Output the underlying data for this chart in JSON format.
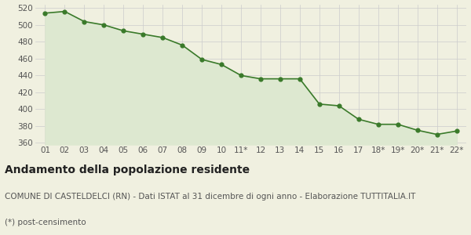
{
  "x_labels": [
    "01",
    "02",
    "03",
    "04",
    "05",
    "06",
    "07",
    "08",
    "09",
    "10",
    "11*",
    "12",
    "13",
    "14",
    "15",
    "16",
    "17",
    "18*",
    "19*",
    "20*",
    "21*",
    "22*"
  ],
  "y_values": [
    514,
    516,
    504,
    500,
    493,
    489,
    485,
    476,
    459,
    453,
    440,
    436,
    436,
    436,
    406,
    404,
    388,
    382,
    382,
    375,
    370,
    374
  ],
  "line_color": "#3a7a2a",
  "fill_color": "#dde8d0",
  "marker_color": "#3a7a2a",
  "background_color": "#f0f0e0",
  "grid_color": "#cccccc",
  "ylim": [
    358,
    524
  ],
  "yticks": [
    360,
    380,
    400,
    420,
    440,
    460,
    480,
    500,
    520
  ],
  "title": "Andamento della popolazione residente",
  "subtitle": "COMUNE DI CASTELDELCI (RN) - Dati ISTAT al 31 dicembre di ogni anno - Elaborazione TUTTITALIA.IT",
  "footnote": "(*) post-censimento",
  "title_fontsize": 10,
  "subtitle_fontsize": 7.5,
  "footnote_fontsize": 7.5,
  "tick_fontsize": 7.5
}
